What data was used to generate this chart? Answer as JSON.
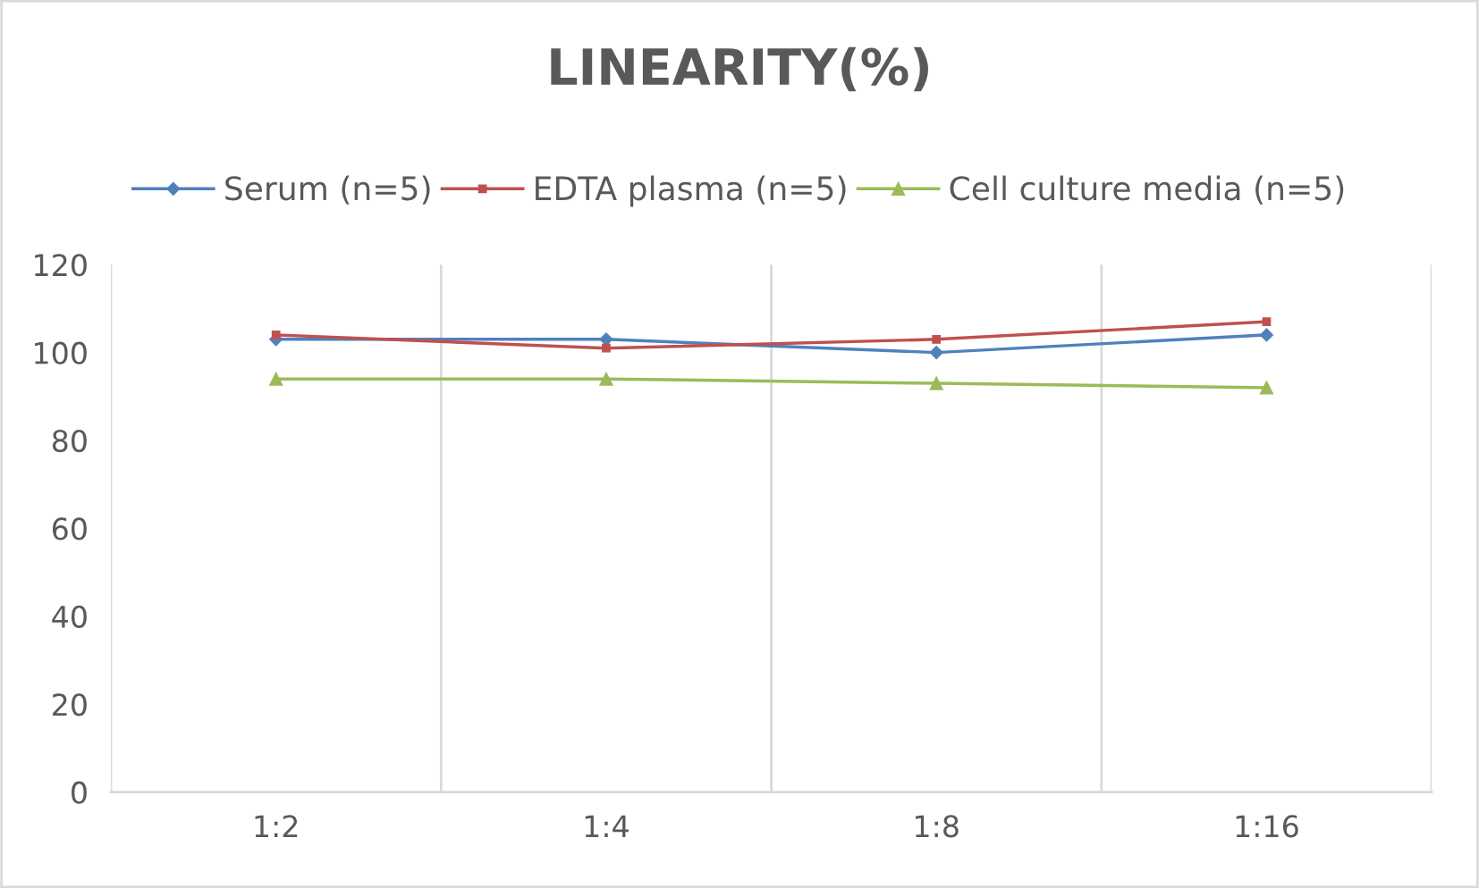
{
  "chart_data": {
    "type": "line",
    "title": "LINEARITY(%)",
    "categories": [
      "1:2",
      "1:4",
      "1:8",
      "1:16"
    ],
    "series": [
      {
        "name": "Serum (n=5)",
        "color": "#4f81bd",
        "values": [
          103,
          103,
          100,
          104
        ],
        "marker": "diamond"
      },
      {
        "name": "EDTA plasma (n=5)",
        "color": "#c0504d",
        "values": [
          104,
          101,
          103,
          107
        ],
        "marker": "square"
      },
      {
        "name": "Cell culture media (n=5)",
        "color": "#9bbb59",
        "values": [
          94,
          94,
          93,
          92
        ],
        "marker": "triangle"
      }
    ],
    "ylim": [
      0,
      120
    ],
    "yticks": [
      0,
      20,
      40,
      60,
      80,
      100,
      120
    ],
    "grid": "x",
    "legend": "top",
    "line_style": "solid"
  }
}
